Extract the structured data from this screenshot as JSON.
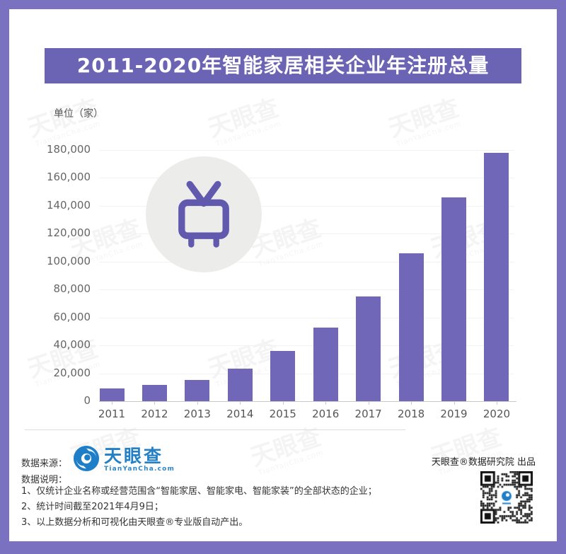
{
  "colors": {
    "frame_border": "#7a72c1",
    "banner_bg": "#6b63b4",
    "bar": "#7067b8",
    "tv_icon": "#6159ae",
    "tv_circle": "#ececea",
    "logo_blue": "#2380c6",
    "axis_text": "#666666"
  },
  "header": {
    "title": "2011-2020年智能家居相关企业年注册总量"
  },
  "chart_data": {
    "type": "bar",
    "title": "2011-2020年智能家居相关企业年注册总量",
    "unit_label": "单位（家）",
    "categories": [
      "2011",
      "2012",
      "2013",
      "2014",
      "2015",
      "2016",
      "2017",
      "2018",
      "2019",
      "2020"
    ],
    "values": [
      9000,
      11500,
      15000,
      23500,
      36000,
      52500,
      75000,
      106000,
      146000,
      178000
    ],
    "xlabel": "",
    "ylabel": "单位（家）",
    "ylim": [
      0,
      180000
    ],
    "ytick_step": 20000,
    "ytick_labels": [
      "0",
      "20,000",
      "40,000",
      "60,000",
      "80,000",
      "100,000",
      "120,000",
      "140,000",
      "160,000",
      "180,000"
    ],
    "grid": true,
    "legend_position": "none",
    "bar_color": "#7067b8"
  },
  "overlay_icon": {
    "name": "tv-icon"
  },
  "watermark": {
    "text": "天眼查",
    "subtext": "TianYanCha.com"
  },
  "footer": {
    "source_label": "数据来源：",
    "logo": {
      "name": "天眼查",
      "domain": "TianYanCha.com"
    },
    "producer": "天眼查®数据研究院 出品",
    "notes_label": "数据说明：",
    "notes": [
      "1、仅统计企业名称或经营范围含“智能家居、智能家电、智能家装”的全部状态的企业；",
      "2、统计时间截至2021年4月9日；",
      "3、以上数据分析和可视化由天眼查®专业版自动产出。"
    ],
    "qr_label": "tianyancha-qr-code"
  }
}
